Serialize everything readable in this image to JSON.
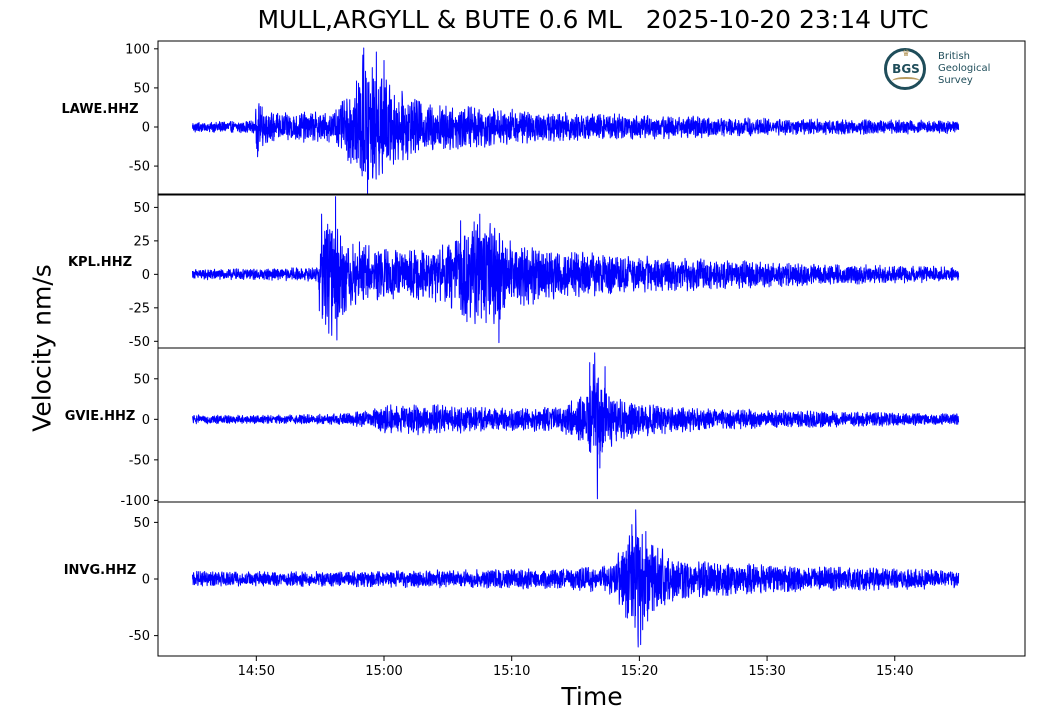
{
  "title": "MULL,ARGYLL & BUTE 0.6 ML   2025-10-20 23:14 UTC",
  "ylabel": "Velocity nm/s",
  "xlabel": "Time",
  "logo": {
    "org_line1": "British",
    "org_line2": "Geological",
    "org_line3": "Survey",
    "initials": "BGS"
  },
  "colors": {
    "trace": "#0000ff",
    "logo": "#1f4d5a",
    "logo_accent": "#b89a5e"
  },
  "chart_data": {
    "type": "line",
    "x_ticks": [
      "14:50",
      "15:00",
      "15:10",
      "15:20",
      "15:30",
      "15:40"
    ],
    "x_tick_minutes": [
      50,
      60,
      70,
      80,
      90,
      100
    ],
    "xlim_minutes": [
      42.3,
      110.2
    ],
    "trace_start": "14:45",
    "trace_end": "15:45",
    "series": [
      {
        "name": "LAWE.HHZ",
        "ylim": [
          -87,
          110
        ],
        "yticks": [
          100,
          50,
          0,
          -50
        ],
        "ytick_labels": [
          "100",
          "50",
          "0",
          "-50"
        ],
        "noise": 5,
        "peak_min": -85,
        "peak_max": 101,
        "envelope": [
          [
            45,
            5
          ],
          [
            49.9,
            6
          ],
          [
            50.0,
            24
          ],
          [
            51,
            14
          ],
          [
            56,
            14
          ],
          [
            57,
            30
          ],
          [
            58,
            45
          ],
          [
            58.5,
            80
          ],
          [
            59,
            60
          ],
          [
            61,
            36
          ],
          [
            63,
            24
          ],
          [
            67,
            20
          ],
          [
            72,
            14
          ],
          [
            80,
            12
          ],
          [
            90,
            8
          ],
          [
            105,
            6
          ]
        ],
        "spikes": [
          [
            50.1,
            -38
          ],
          [
            58.0,
            56
          ],
          [
            58.4,
            101
          ],
          [
            58.7,
            -85
          ],
          [
            59.4,
            96
          ],
          [
            60.0,
            85
          ],
          [
            59.1,
            -64
          ]
        ]
      },
      {
        "name": "KPL.HHZ",
        "ylim": [
          -55,
          60
        ],
        "yticks": [
          50,
          25,
          0,
          -25,
          -50
        ],
        "ytick_labels": [
          "50",
          "25",
          "0",
          "-25",
          "-50"
        ],
        "noise": 3,
        "peak_min": -51,
        "peak_max": 58,
        "envelope": [
          [
            45,
            3
          ],
          [
            50,
            3
          ],
          [
            54.8,
            4
          ],
          [
            55.0,
            30
          ],
          [
            56,
            34
          ],
          [
            57,
            20
          ],
          [
            60,
            14
          ],
          [
            63,
            14
          ],
          [
            65,
            18
          ],
          [
            66.5,
            28
          ],
          [
            68,
            30
          ],
          [
            70,
            20
          ],
          [
            73,
            14
          ],
          [
            80,
            10
          ],
          [
            90,
            7
          ],
          [
            105,
            4
          ]
        ],
        "spikes": [
          [
            55.1,
            45
          ],
          [
            56.2,
            58
          ],
          [
            56.3,
            -49
          ],
          [
            66.0,
            40
          ],
          [
            67.5,
            45
          ],
          [
            69.0,
            -51
          ],
          [
            68.3,
            38
          ]
        ]
      },
      {
        "name": "GVIE.HHZ",
        "ylim": [
          -102,
          88
        ],
        "yticks": [
          50,
          0,
          -50,
          -100
        ],
        "ytick_labels": [
          "50",
          "0",
          "-50",
          "-100"
        ],
        "noise": 4,
        "peak_min": -98,
        "peak_max": 82,
        "envelope": [
          [
            45,
            4
          ],
          [
            52,
            4
          ],
          [
            56,
            5
          ],
          [
            59,
            8
          ],
          [
            60,
            14
          ],
          [
            63,
            14
          ],
          [
            70,
            10
          ],
          [
            74,
            12
          ],
          [
            75.8,
            24
          ],
          [
            76.3,
            55
          ],
          [
            77,
            35
          ],
          [
            78,
            22
          ],
          [
            80,
            16
          ],
          [
            85,
            10
          ],
          [
            95,
            7
          ],
          [
            105,
            5
          ]
        ],
        "spikes": [
          [
            76.1,
            70
          ],
          [
            76.5,
            82
          ],
          [
            76.7,
            -98
          ],
          [
            76.9,
            -60
          ],
          [
            77.3,
            65
          ]
        ]
      },
      {
        "name": "INVG.HHZ",
        "ylim": [
          -68,
          68
        ],
        "yticks": [
          50,
          0,
          -50
        ],
        "ytick_labels": [
          "50",
          "0",
          "-50"
        ],
        "noise": 5,
        "peak_min": -60,
        "peak_max": 61,
        "envelope": [
          [
            45,
            5
          ],
          [
            55,
            5
          ],
          [
            65,
            6
          ],
          [
            75,
            7
          ],
          [
            78,
            10
          ],
          [
            79.0,
            30
          ],
          [
            79.8,
            40
          ],
          [
            81,
            24
          ],
          [
            83,
            14
          ],
          [
            88,
            10
          ],
          [
            95,
            8
          ],
          [
            105,
            6
          ]
        ],
        "spikes": [
          [
            79.4,
            48
          ],
          [
            79.7,
            61
          ],
          [
            79.9,
            -60
          ],
          [
            80.1,
            -58
          ],
          [
            80.5,
            42
          ]
        ]
      }
    ]
  }
}
